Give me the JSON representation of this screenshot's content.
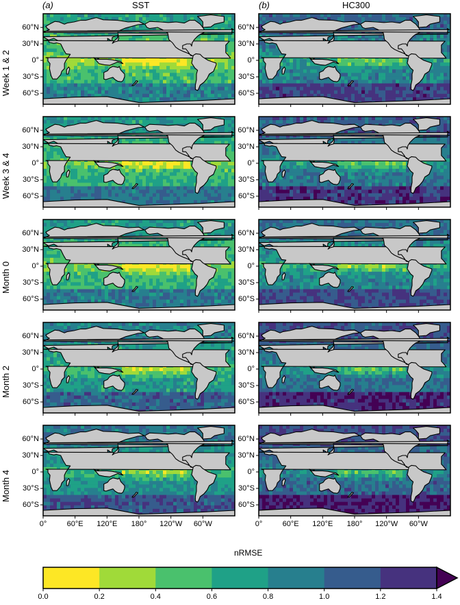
{
  "panel_labels": {
    "a": "(a)",
    "b": "(b)"
  },
  "chart_data": {
    "type": "heatmap",
    "columns": [
      {
        "letter": "(a)",
        "title": "SST"
      },
      {
        "letter": "(b)",
        "title": "HC300"
      }
    ],
    "rows": [
      "Week 1 & 2",
      "Week 3 & 4",
      "Month 0",
      "Month 2",
      "Month 4"
    ],
    "latitude_ticks": [
      "60°N",
      "30°N",
      "0°",
      "30°S",
      "60°S"
    ],
    "latitude_values": [
      60,
      30,
      0,
      -30,
      -60
    ],
    "longitude_ticks": [
      "0°",
      "60°E",
      "120°E",
      "180°",
      "120°W",
      "60°W"
    ],
    "longitude_values": [
      0,
      60,
      120,
      180,
      240,
      300
    ],
    "lon_range": [
      0,
      360
    ],
    "lat_range": [
      -80,
      85
    ],
    "colorbar": {
      "label": "nRMSE",
      "ticks": [
        "0.0",
        "0.2",
        "0.4",
        "0.6",
        "0.8",
        "1.0",
        "1.2",
        "1.4"
      ],
      "bounds": [
        0,
        0.2,
        0.4,
        0.6,
        0.8,
        1.0,
        1.2,
        1.4
      ],
      "colors": [
        "#fde725",
        "#a0da39",
        "#4ac16d",
        "#1fa187",
        "#277f8e",
        "#365c8d",
        "#46327e",
        "#440154"
      ],
      "extend": "max"
    },
    "land_color": "#c8c8c8",
    "ocean_base": {
      "SST": [
        0.55,
        0.62,
        0.6,
        0.75,
        0.8
      ],
      "HC300": [
        0.9,
        0.95,
        0.85,
        1.0,
        1.05
      ]
    }
  }
}
